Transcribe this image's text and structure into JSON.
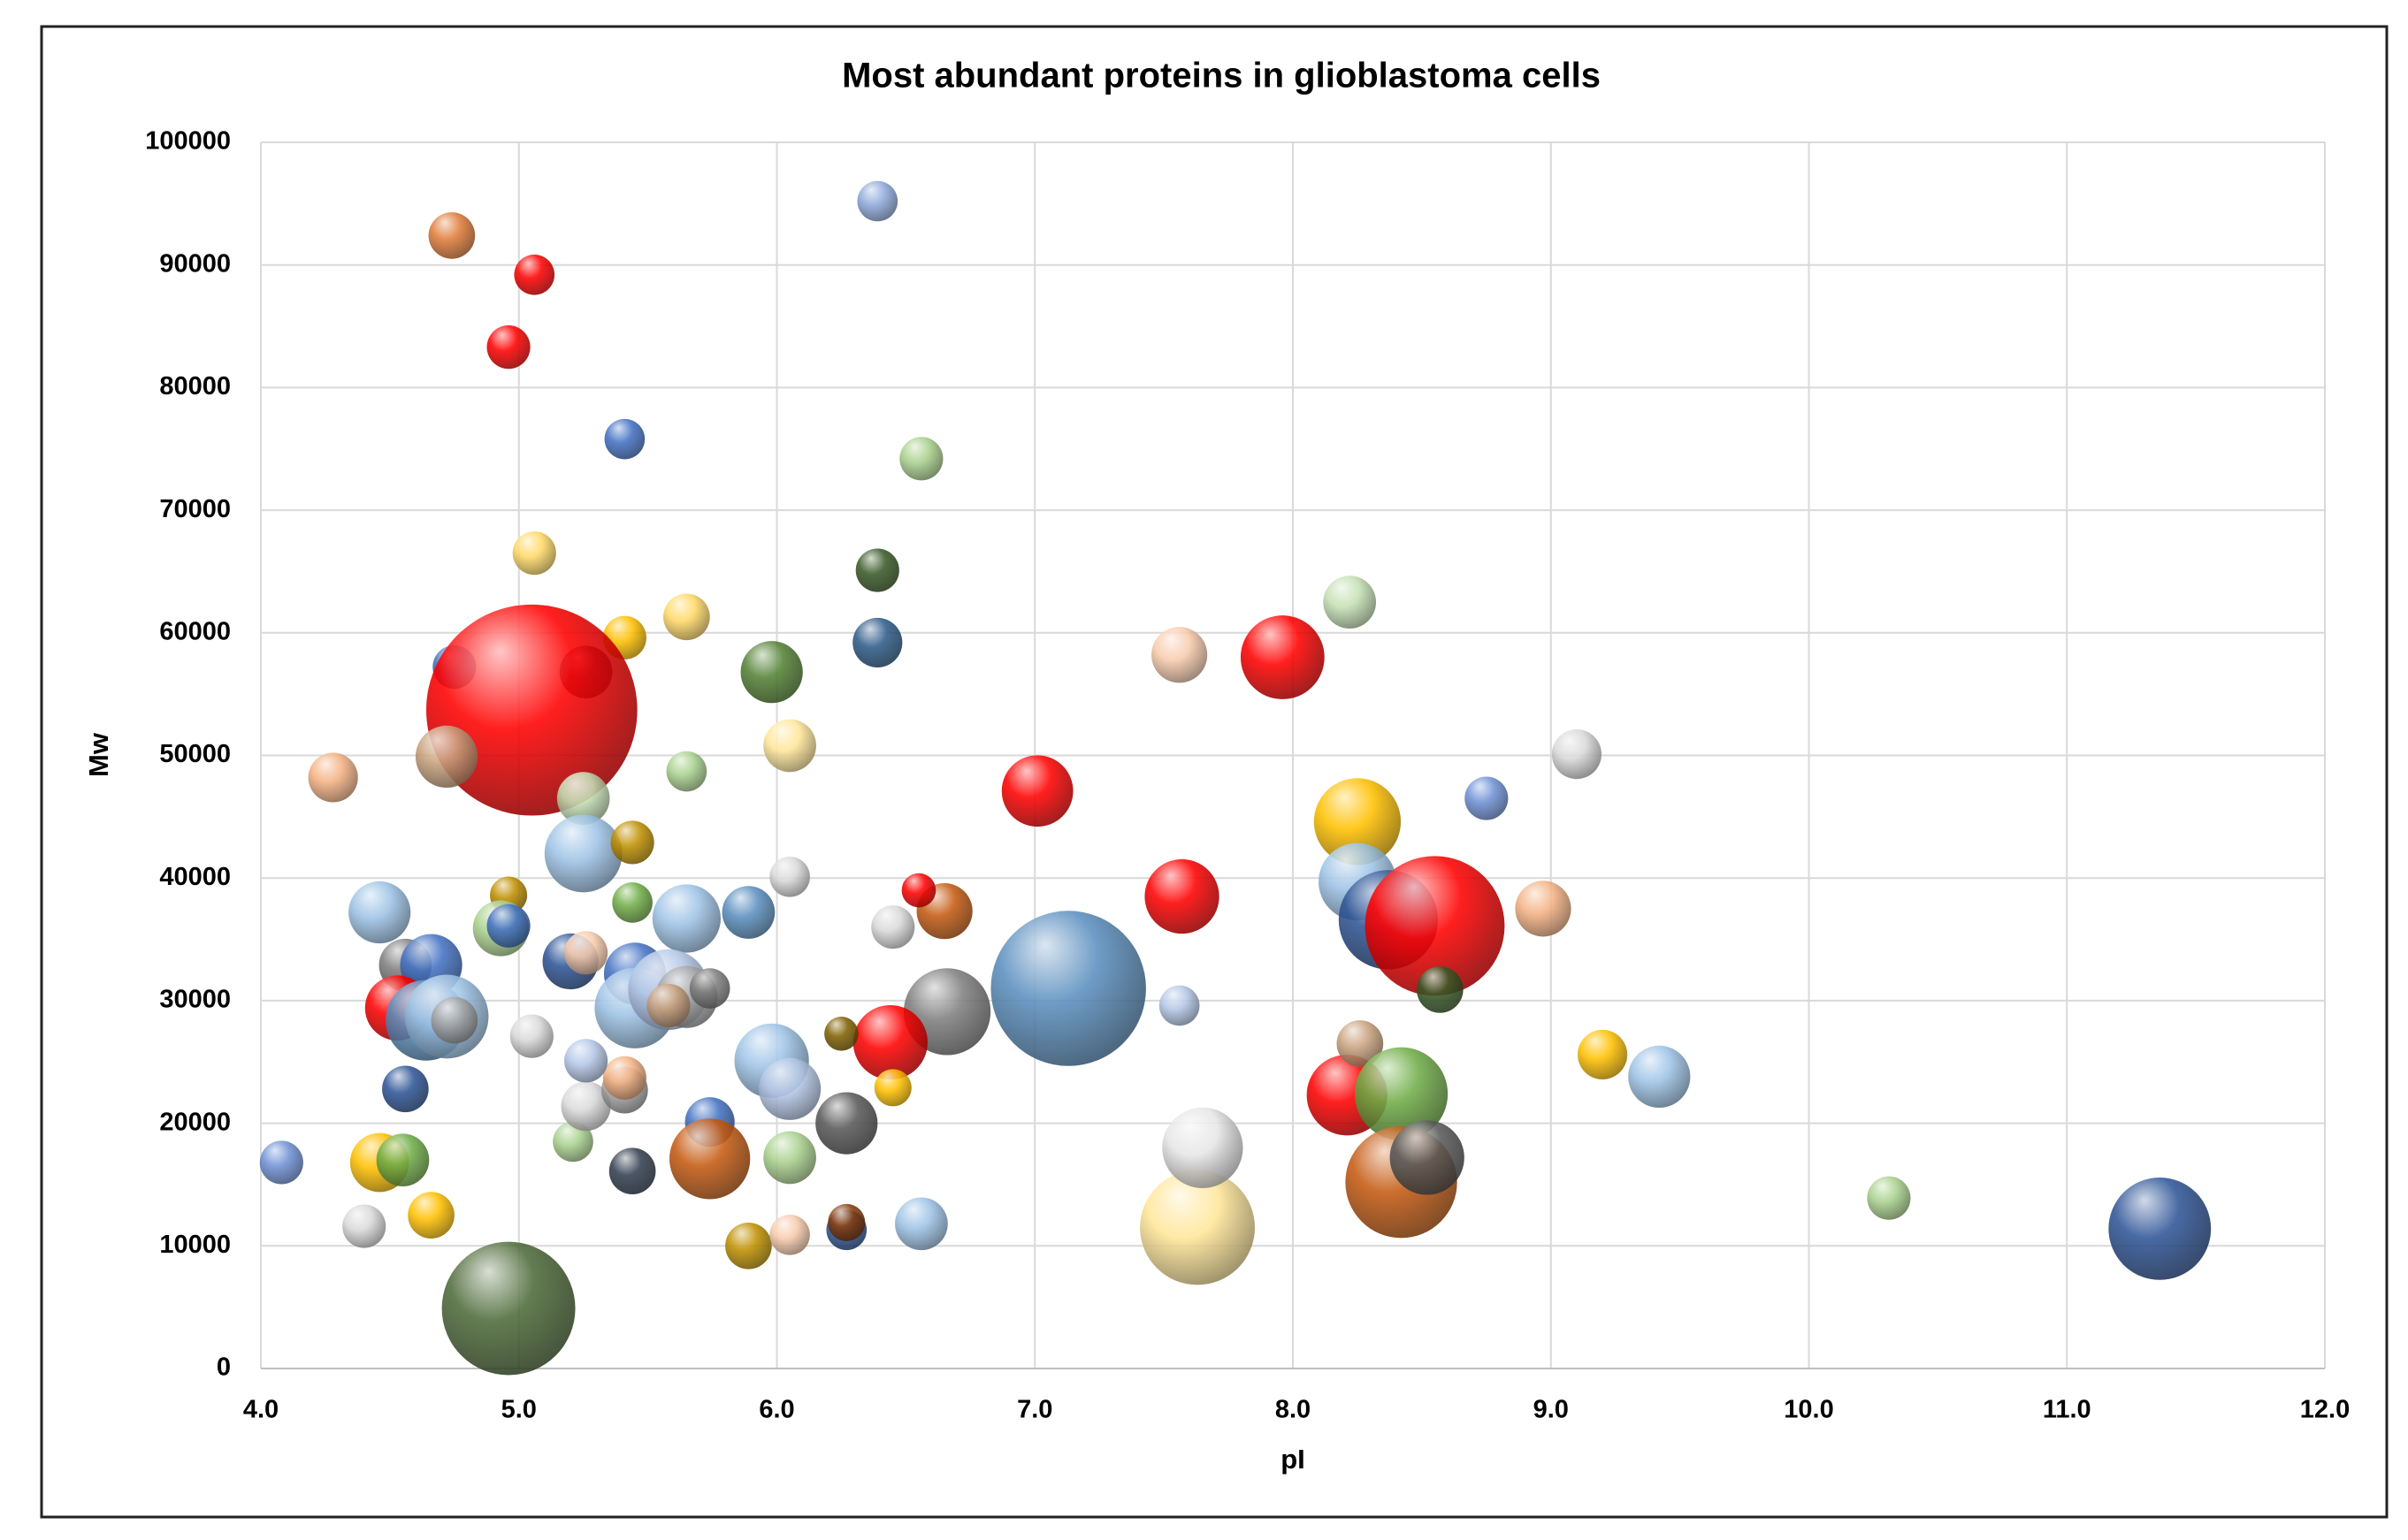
{
  "chart_data": {
    "type": "bubble",
    "title": "Most abundant proteins in glioblastoma cells",
    "x_label": "pI",
    "y_label": "Mw",
    "xlim": [
      4,
      12
    ],
    "ylim": [
      0,
      100000
    ],
    "xticks": [
      {
        "value": 4,
        "label": "4.0"
      },
      {
        "value": 5,
        "label": "5.0"
      },
      {
        "value": 6,
        "label": "6.0"
      },
      {
        "value": 7,
        "label": "7.0"
      },
      {
        "value": 8,
        "label": "8.0"
      },
      {
        "value": 9,
        "label": "9.0"
      },
      {
        "value": 10,
        "label": "10.0"
      },
      {
        "value": 11,
        "label": "11.0"
      },
      {
        "value": 12,
        "label": "12.0"
      }
    ],
    "yticks": [
      0,
      10000,
      20000,
      30000,
      40000,
      50000,
      60000,
      70000,
      80000,
      90000,
      100000
    ],
    "grid": true,
    "x": [
      4.74,
      5.06,
      4.96,
      6.39,
      5.41,
      6.56,
      5.06,
      6.39,
      5.41,
      5.65,
      6.39,
      5.98,
      5.26,
      4.75,
      5.05,
      4.72,
      4.28,
      5.65,
      6.05,
      5.25,
      5.25,
      5.44,
      7.01,
      7.56,
      7.96,
      8.22,
      9.1,
      8.75,
      8.25,
      8.25,
      8.37,
      8.55,
      8.97,
      8.57,
      7.57,
      7.13,
      7.56,
      6.66,
      6.65,
      6.55,
      6.45,
      6.05,
      6.44,
      6.25,
      6.45,
      6.27,
      5.98,
      6.05,
      6.05,
      5.89,
      6.05,
      6.27,
      6.27,
      6.56,
      5.74,
      5.74,
      5.44,
      5.21,
      5.26,
      5.41,
      5.41,
      5.26,
      5.05,
      4.56,
      4.46,
      4.55,
      4.08,
      4.4,
      4.66,
      4.96,
      7.63,
      7.65,
      8.21,
      8.26,
      8.42,
      8.42,
      8.52,
      9.2,
      9.42,
      10.31,
      11.36,
      4.46,
      4.56,
      4.66,
      4.53,
      4.64,
      4.72,
      4.75,
      4.96,
      4.93,
      4.96,
      5.2,
      5.26,
      5.44,
      5.65,
      5.89,
      5.45,
      5.45,
      5.58,
      5.65,
      5.74,
      5.58
    ],
    "y": [
      92400,
      89200,
      83300,
      95200,
      75800,
      74200,
      66500,
      65100,
      59600,
      61300,
      59200,
      56800,
      56800,
      57200,
      53700,
      49900,
      48200,
      48700,
      50800,
      46500,
      42000,
      42900,
      47100,
      58200,
      58000,
      62500,
      50100,
      46500,
      44600,
      39700,
      36600,
      36100,
      37500,
      30900,
      38500,
      31000,
      29600,
      29100,
      37300,
      39000,
      36000,
      40100,
      26600,
      27300,
      22900,
      20000,
      25100,
      22800,
      17200,
      10000,
      10900,
      11300,
      11900,
      11800,
      20100,
      17100,
      16100,
      18500,
      21400,
      22700,
      23700,
      25100,
      27100,
      22800,
      16800,
      17000,
      16800,
      11600,
      12500,
      4900,
      11500,
      18000,
      22300,
      26500,
      22400,
      15200,
      17200,
      25600,
      23800,
      13900,
      11400,
      37200,
      32900,
      32900,
      29400,
      28400,
      28700,
      28400,
      38600,
      35900,
      36100,
      33200,
      33900,
      38000,
      36700,
      37200,
      32200,
      29400,
      30900,
      30300,
      31000,
      29600
    ],
    "sizes": [
      225,
      169,
      196,
      169,
      169,
      196,
      196,
      196,
      196,
      225,
      256,
      400,
      289,
      196,
      4624,
      400,
      256,
      169,
      289,
      289,
      625,
      196,
      529,
      324,
      729,
      289,
      256,
      196,
      784,
      625,
      1024,
      2025,
      324,
      225,
      576,
      2500,
      169,
      784,
      324,
      121,
      196,
      169,
      576,
      121,
      144,
      400,
      576,
      400,
      289,
      225,
      169,
      169,
      144,
      289,
      256,
      676,
      225,
      169,
      256,
      225,
      196,
      196,
      196,
      225,
      361,
      289,
      196,
      196,
      225,
      1849,
      1369,
      676,
      676,
      225,
      900,
      1296,
      576,
      256,
      400,
      196,
      1089,
      400,
      289,
      400,
      441,
      676,
      729,
      225,
      144,
      324,
      196,
      324,
      196,
      169,
      484,
      289,
      400,
      676,
      676,
      400,
      169,
      196
    ],
    "colors": [
      "#e07b39",
      "#ff0000",
      "#ff0000",
      "#8faadc",
      "#4472c4",
      "#a9d18e",
      "#ffd966",
      "#3a5a28",
      "#ffc000",
      "#ffd966",
      "#2e5c8a",
      "#548235",
      "#333f70",
      "#4472c4",
      "#ff0000",
      "#c9a27e",
      "#f4b183",
      "#a9d18e",
      "#ffe699",
      "#c5e0b4",
      "#9dc3e6",
      "#bf9000",
      "#ff0000",
      "#f8cbad",
      "#ff0000",
      "#c5e0b4",
      "#d9d9d9",
      "#6f91d6",
      "#ffc000",
      "#9dc3e6",
      "#2f5597",
      "#ff0000",
      "#f4b183",
      "#3a5a28",
      "#ff0000",
      "#5b8fbf",
      "#b4c7e7",
      "#7f7f7f",
      "#c55a11",
      "#ff0000",
      "#d9d9d9",
      "#d9d9d9",
      "#ff0000",
      "#7f6000",
      "#ffc000",
      "#595959",
      "#9dc3e6",
      "#b4c7e7",
      "#a9d18e",
      "#bf9000",
      "#f8cbad",
      "#2f5597",
      "#843c0c",
      "#9dc3e6",
      "#4472c4",
      "#c55a11",
      "#333f50",
      "#a9d18e",
      "#d9d9d9",
      "#a5a5a5",
      "#f4b183",
      "#b4c7e7",
      "#d9d9d9",
      "#2f5597",
      "#ffc000",
      "#70ad47",
      "#6f91d6",
      "#d9d9d9",
      "#ffc000",
      "#4e6b3a",
      "#ffe699",
      "#e7e6e6",
      "#ff0000",
      "#c9a27e",
      "#70ad47",
      "#c55a11",
      "#595959",
      "#ffc000",
      "#9dc3e6",
      "#a9d18e",
      "#2f5597",
      "#9dc3e6",
      "#7f7f7f",
      "#4472c4",
      "#ff0000",
      "#5b8fbf",
      "#9dc3e6",
      "#a5a5a5",
      "#bf9000",
      "#a9d18e",
      "#4472c4",
      "#2f5597",
      "#f8cbad",
      "#70ad47",
      "#9dc3e6",
      "#5b8fbf",
      "#4472c4",
      "#9dc3e6",
      "#b4c7e7",
      "#a5a5a5",
      "#7f7f7f",
      "#c9a27e"
    ]
  }
}
